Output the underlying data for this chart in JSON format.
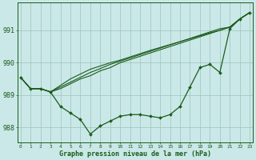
{
  "background_color": "#cbe8e8",
  "grid_color": "#a0c8c0",
  "line_color": "#1a5c1a",
  "title": "Graphe pression niveau de la mer (hPa)",
  "ylabel_ticks": [
    988,
    989,
    990,
    991
  ],
  "x_ticks": [
    0,
    1,
    2,
    3,
    4,
    5,
    6,
    7,
    8,
    9,
    10,
    11,
    12,
    13,
    14,
    15,
    16,
    17,
    18,
    19,
    20,
    21,
    22,
    23
  ],
  "xlim": [
    -0.3,
    23.3
  ],
  "ylim": [
    987.55,
    991.85
  ],
  "line_curved": [
    989.55,
    989.2,
    989.2,
    989.1,
    988.65,
    988.45,
    988.25,
    987.8,
    988.05,
    988.2,
    988.35,
    988.4,
    988.4,
    988.35,
    988.3,
    988.4,
    988.65,
    989.25,
    989.85,
    989.95,
    989.7,
    991.05,
    991.35,
    991.55
  ],
  "line_straight1": [
    989.55,
    989.2,
    989.2,
    989.1,
    989.2,
    989.35,
    989.5,
    989.6,
    989.75,
    989.85,
    990.0,
    990.1,
    990.2,
    990.3,
    990.4,
    990.5,
    990.6,
    990.7,
    990.8,
    990.9,
    991.0,
    991.1,
    991.35,
    991.55
  ],
  "line_straight2": [
    989.55,
    989.2,
    989.2,
    989.1,
    989.25,
    989.4,
    989.55,
    989.7,
    989.82,
    989.95,
    990.05,
    990.15,
    990.25,
    990.35,
    990.45,
    990.55,
    990.65,
    990.75,
    990.85,
    990.95,
    991.05,
    991.1,
    991.35,
    991.55
  ],
  "line_straight3": [
    989.55,
    989.2,
    989.2,
    989.1,
    989.3,
    989.5,
    989.65,
    989.8,
    989.9,
    990.0,
    990.08,
    990.18,
    990.28,
    990.38,
    990.47,
    990.56,
    990.65,
    990.74,
    990.83,
    990.92,
    991.0,
    991.1,
    991.35,
    991.55
  ],
  "marker_size": 2.0
}
